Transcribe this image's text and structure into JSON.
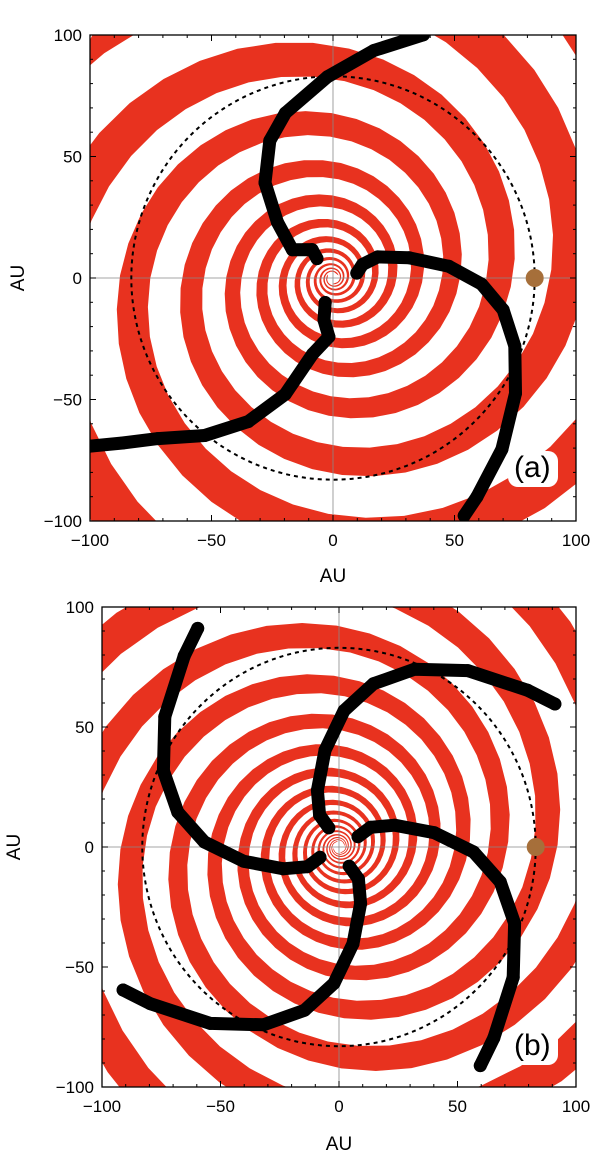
{
  "chart_data": [
    {
      "type": "scatter",
      "panel_label": "(a)",
      "xlabel": "AU",
      "ylabel": "AU",
      "xlim": [
        -100,
        100
      ],
      "ylim": [
        -100,
        100
      ],
      "xticks": [
        -100,
        -50,
        0,
        50,
        100
      ],
      "yticks": [
        -100,
        -50,
        0,
        50,
        100
      ],
      "arms": 3,
      "arm_rotation_deg": 0,
      "pitch_b": 0.165,
      "orbit_radius": 83,
      "planet": {
        "x": 83,
        "y": 0
      },
      "grid": false,
      "colors": {
        "band": "#e8321f",
        "spiral_points": "#000000",
        "planet": "#a66f3a",
        "orbit": "#000000"
      },
      "series": [
        {
          "values": [
            [
              9.8,
              2.0
            ],
            [
              12.2,
              5.6
            ],
            [
              18.4,
              8.7
            ],
            [
              31.3,
              8.3
            ],
            [
              47.7,
              4.8
            ],
            [
              61.1,
              -2.5
            ],
            [
              70.0,
              -13.1
            ],
            [
              74.8,
              -28.0
            ],
            [
              75.1,
              -47.5
            ],
            [
              69.5,
              -70.5
            ],
            [
              59.2,
              -90.1
            ],
            [
              54.0,
              -97.8
            ]
          ]
        },
        {
          "values": [
            [
              -6.6,
              8.0
            ],
            [
              -8.6,
              11.7
            ],
            [
              -16.7,
              11.6
            ],
            [
              -22.9,
              23.0
            ],
            [
              -28.0,
              39.2
            ],
            [
              -26.0,
              56.5
            ],
            [
              -19.6,
              67.9
            ],
            [
              -2.3,
              82.8
            ],
            [
              16.7,
              93.6
            ],
            [
              37.2,
              100.1
            ]
          ]
        },
        {
          "values": [
            [
              -3.2,
              -10.1
            ],
            [
              -3.7,
              -17.3
            ],
            [
              -1.7,
              -24.2
            ],
            [
              -8.4,
              -31.3
            ],
            [
              -19.7,
              -47.9
            ],
            [
              -34.9,
              -59.1
            ],
            [
              -52.8,
              -64.8
            ],
            [
              -72.1,
              -66.1
            ],
            [
              -86.6,
              -67.9
            ],
            [
              -100.0,
              -69.2
            ]
          ]
        }
      ]
    },
    {
      "type": "scatter",
      "panel_label": "(b)",
      "xlabel": "AU",
      "ylabel": "AU",
      "xlim": [
        -100,
        100
      ],
      "ylim": [
        -100,
        100
      ],
      "xticks": [
        -100,
        -50,
        0,
        50,
        100
      ],
      "yticks": [
        -100,
        -50,
        0,
        50,
        100
      ],
      "arms": 4,
      "arm_rotation_deg": 0,
      "pitch_b": 0.165,
      "orbit_radius": 83,
      "planet": {
        "x": 83,
        "y": 0
      },
      "grid": false,
      "colors": {
        "band": "#e8321f",
        "spiral_points": "#000000",
        "planet": "#a66f3a",
        "orbit": "#000000"
      },
      "series": [
        {
          "values": [
            [
              8.0,
              4.3
            ],
            [
              13.3,
              8.2
            ],
            [
              23.6,
              9.1
            ],
            [
              40.3,
              5.9
            ],
            [
              56.8,
              -2.1
            ],
            [
              68.0,
              -14.5
            ],
            [
              74.1,
              -31.8
            ],
            [
              73.5,
              -54.3
            ],
            [
              65.3,
              -79.6
            ],
            [
              59.6,
              -91.1
            ]
          ]
        },
        {
          "values": [
            [
              -4.3,
              8.0
            ],
            [
              -8.2,
              13.3
            ],
            [
              -9.1,
              23.6
            ],
            [
              -5.9,
              40.3
            ],
            [
              2.1,
              56.8
            ],
            [
              14.5,
              68.0
            ],
            [
              31.8,
              74.1
            ],
            [
              54.3,
              73.5
            ],
            [
              79.6,
              65.3
            ],
            [
              91.1,
              59.6
            ]
          ]
        },
        {
          "values": [
            [
              -8.0,
              -4.3
            ],
            [
              -13.3,
              -8.2
            ],
            [
              -23.6,
              -9.1
            ],
            [
              -40.3,
              -5.9
            ],
            [
              -56.8,
              2.1
            ],
            [
              -68.0,
              14.5
            ],
            [
              -74.1,
              31.8
            ],
            [
              -73.5,
              54.3
            ],
            [
              -65.3,
              79.6
            ],
            [
              -59.6,
              91.1
            ]
          ]
        },
        {
          "values": [
            [
              4.3,
              -8.0
            ],
            [
              8.2,
              -13.3
            ],
            [
              9.1,
              -23.6
            ],
            [
              5.9,
              -40.3
            ],
            [
              -2.1,
              -56.8
            ],
            [
              -14.5,
              -68.0
            ],
            [
              -31.8,
              -74.1
            ],
            [
              -54.3,
              -73.5
            ],
            [
              -79.6,
              -65.3
            ],
            [
              -91.1,
              -59.6
            ]
          ]
        }
      ]
    }
  ]
}
